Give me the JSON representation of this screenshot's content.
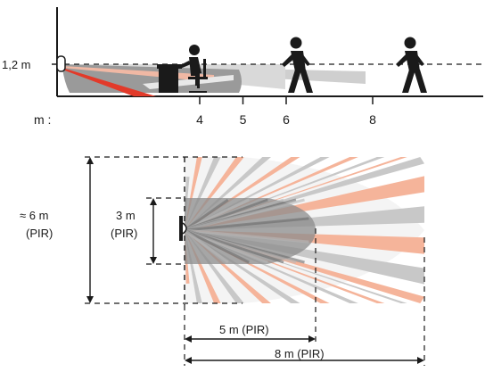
{
  "side_view": {
    "height_label": "1,2 m",
    "axis_unit_label": "m :",
    "ticks": [
      {
        "label": "4",
        "value_m": 4
      },
      {
        "label": "5",
        "value_m": 5
      },
      {
        "label": "6",
        "value_m": 6
      },
      {
        "label": "8",
        "value_m": 8
      }
    ]
  },
  "top_view": {
    "width_total_label_1": "≈ 6 m",
    "width_total_label_2": "(PIR)",
    "width_inner_label_1": "3 m",
    "width_inner_label_2": "(PIR)",
    "range_short_label": "5 m (PIR)",
    "range_long_label": "8 m (PIR)"
  },
  "colors": {
    "zone_dark": "#8c8c8c",
    "zone_light": "#c8c8c8",
    "zone_salmon": "#f5b49a",
    "zone_red": "#e23a2a",
    "ink": "#1a1a1a"
  }
}
